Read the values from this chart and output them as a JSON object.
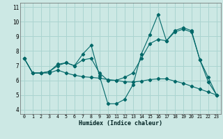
{
  "title": "",
  "xlabel": "Humidex (Indice chaleur)",
  "ylabel": "",
  "bg_color": "#cce8e4",
  "grid_color": "#aad4d0",
  "line_color": "#006868",
  "xlim": [
    -0.5,
    23.5
  ],
  "ylim": [
    3.7,
    11.3
  ],
  "xticks": [
    0,
    1,
    2,
    3,
    4,
    5,
    6,
    7,
    8,
    9,
    10,
    11,
    12,
    13,
    14,
    15,
    16,
    17,
    18,
    19,
    20,
    21,
    22,
    23
  ],
  "yticks": [
    4,
    5,
    6,
    7,
    8,
    9,
    10,
    11
  ],
  "series": [
    [
      7.5,
      6.5,
      6.5,
      6.6,
      7.1,
      7.2,
      7.0,
      7.8,
      8.4,
      6.3,
      4.4,
      4.4,
      4.7,
      5.7,
      7.8,
      9.1,
      10.5,
      8.7,
      9.4,
      9.6,
      9.4,
      7.4,
      6.2,
      5.0
    ],
    [
      7.5,
      6.5,
      6.5,
      6.6,
      7.0,
      7.2,
      7.0,
      7.4,
      7.5,
      6.5,
      6.0,
      6.0,
      6.2,
      6.5,
      7.5,
      8.5,
      8.8,
      8.7,
      9.3,
      9.5,
      9.3,
      7.4,
      5.9,
      5.0
    ],
    [
      7.5,
      6.5,
      6.5,
      6.5,
      6.7,
      6.5,
      6.35,
      6.25,
      6.2,
      6.15,
      6.05,
      6.0,
      5.9,
      5.88,
      5.95,
      6.05,
      6.1,
      6.1,
      5.95,
      5.8,
      5.6,
      5.4,
      5.2,
      5.0
    ]
  ]
}
